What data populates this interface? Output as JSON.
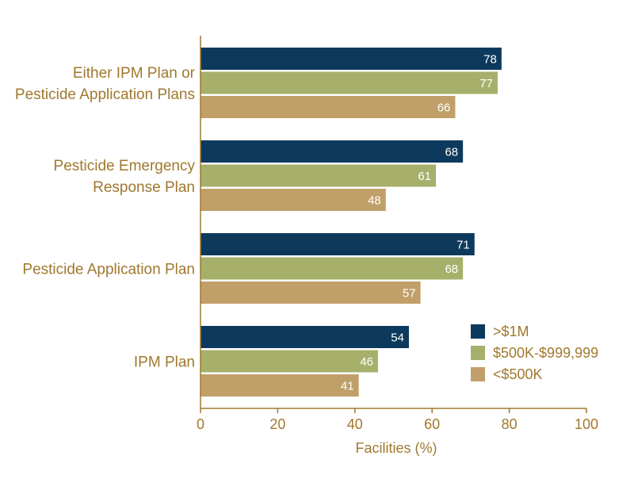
{
  "chart_data": {
    "type": "bar",
    "orientation": "horizontal",
    "title": "",
    "xlabel": "Facilities (%)",
    "ylabel": "",
    "xlim": [
      0,
      100
    ],
    "xticks": [
      0,
      20,
      40,
      60,
      80,
      100
    ],
    "grid": false,
    "legend_position": "bottom-right",
    "categories": [
      [
        "Either IPM Plan or",
        "Pesticide Application Plans"
      ],
      [
        "Pesticide Emergency",
        "Response Plan"
      ],
      [
        "Pesticide Application Plan"
      ],
      [
        "IPM Plan"
      ]
    ],
    "series": [
      {
        "name": ">$1M",
        "color": "#0d3a5c",
        "values": [
          78,
          68,
          71,
          54
        ]
      },
      {
        "name": "$500K-$999,999",
        "color": "#a7b06b",
        "values": [
          77,
          61,
          68,
          46
        ]
      },
      {
        "name": "<$500K",
        "color": "#c09f69",
        "values": [
          66,
          48,
          57,
          41
        ]
      }
    ]
  }
}
